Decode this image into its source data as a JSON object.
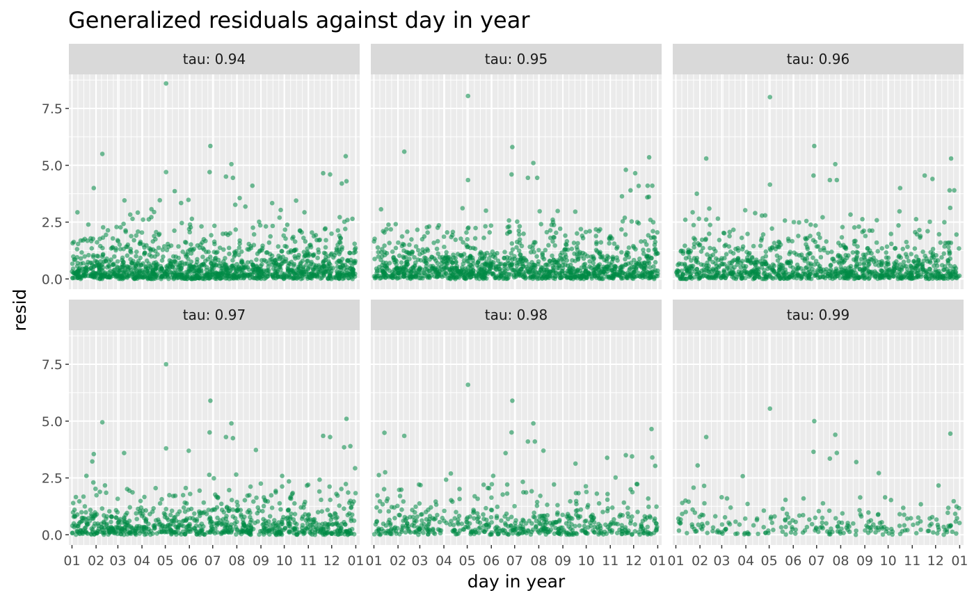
{
  "chart_data": {
    "type": "scatter",
    "title": "Generalized residuals against day in year",
    "xlabel": "day in year",
    "ylabel": "resid",
    "facet_layout": "2 rows x 3 columns",
    "x_tick_labels": [
      "01",
      "02",
      "03",
      "04",
      "05",
      "06",
      "07",
      "08",
      "09",
      "10",
      "11",
      "12",
      "01"
    ],
    "x_range_days": [
      -4,
      370
    ],
    "y_ticks": [
      0.0,
      2.5,
      5.0,
      7.5
    ],
    "y_tick_labels": [
      "0.0",
      "2.5",
      "5.0",
      "7.5"
    ],
    "ylim": [
      -0.45,
      9.0
    ],
    "grid": true,
    "legend": "none",
    "colors": {
      "point": "#008B45",
      "panel_background": "#EBEBEB",
      "strip_background": "#D9D9D9",
      "grid": "#FFFFFF"
    },
    "panels": [
      {
        "strip": "tau: 0.94",
        "approx_point_count": 1300,
        "notable_points": [
          {
            "day": 39,
            "resid": 5.5
          },
          {
            "day": 121,
            "resid": 8.6
          },
          {
            "day": 121,
            "resid": 4.7
          },
          {
            "day": 178,
            "resid": 5.85
          },
          {
            "day": 177,
            "resid": 4.7
          },
          {
            "day": 205,
            "resid": 5.05
          },
          {
            "day": 198,
            "resid": 4.5
          },
          {
            "day": 207,
            "resid": 4.45
          },
          {
            "day": 232,
            "resid": 4.1
          },
          {
            "day": 323,
            "resid": 4.65
          },
          {
            "day": 332,
            "resid": 4.6
          },
          {
            "day": 352,
            "resid": 5.4
          },
          {
            "day": 353,
            "resid": 4.3
          },
          {
            "day": 347,
            "resid": 4.2
          },
          {
            "day": 28,
            "resid": 4.0
          }
        ]
      },
      {
        "strip": "tau: 0.95",
        "approx_point_count": 1200,
        "notable_points": [
          {
            "day": 39,
            "resid": 5.6
          },
          {
            "day": 121,
            "resid": 8.05
          },
          {
            "day": 121,
            "resid": 4.35
          },
          {
            "day": 178,
            "resid": 5.8
          },
          {
            "day": 177,
            "resid": 4.6
          },
          {
            "day": 205,
            "resid": 5.1
          },
          {
            "day": 198,
            "resid": 4.45
          },
          {
            "day": 210,
            "resid": 4.45
          },
          {
            "day": 324,
            "resid": 4.8
          },
          {
            "day": 336,
            "resid": 4.65
          },
          {
            "day": 354,
            "resid": 5.35
          },
          {
            "day": 352,
            "resid": 4.1
          },
          {
            "day": 358,
            "resid": 4.1
          },
          {
            "day": 330,
            "resid": 3.9
          }
        ]
      },
      {
        "strip": "tau: 0.96",
        "approx_point_count": 1000,
        "notable_points": [
          {
            "day": 39,
            "resid": 5.3
          },
          {
            "day": 121,
            "resid": 8.0
          },
          {
            "day": 121,
            "resid": 4.15
          },
          {
            "day": 178,
            "resid": 5.85
          },
          {
            "day": 177,
            "resid": 4.55
          },
          {
            "day": 205,
            "resid": 5.05
          },
          {
            "day": 198,
            "resid": 4.35
          },
          {
            "day": 207,
            "resid": 4.35
          },
          {
            "day": 320,
            "resid": 4.55
          },
          {
            "day": 330,
            "resid": 4.4
          },
          {
            "day": 354,
            "resid": 5.3
          },
          {
            "day": 352,
            "resid": 3.9
          },
          {
            "day": 358,
            "resid": 3.9
          },
          {
            "day": 27,
            "resid": 3.75
          }
        ]
      },
      {
        "strip": "tau: 0.97",
        "approx_point_count": 800,
        "notable_points": [
          {
            "day": 39,
            "resid": 4.95
          },
          {
            "day": 121,
            "resid": 7.5
          },
          {
            "day": 121,
            "resid": 3.8
          },
          {
            "day": 178,
            "resid": 5.9
          },
          {
            "day": 177,
            "resid": 4.5
          },
          {
            "day": 205,
            "resid": 4.9
          },
          {
            "day": 198,
            "resid": 4.3
          },
          {
            "day": 207,
            "resid": 4.25
          },
          {
            "day": 323,
            "resid": 4.35
          },
          {
            "day": 332,
            "resid": 4.3
          },
          {
            "day": 353,
            "resid": 5.1
          },
          {
            "day": 350,
            "resid": 3.85
          },
          {
            "day": 358,
            "resid": 3.9
          },
          {
            "day": 28,
            "resid": 3.55
          }
        ]
      },
      {
        "strip": "tau: 0.98",
        "approx_point_count": 550,
        "notable_points": [
          {
            "day": 39,
            "resid": 4.35
          },
          {
            "day": 121,
            "resid": 6.6
          },
          {
            "day": 178,
            "resid": 5.9
          },
          {
            "day": 177,
            "resid": 4.5
          },
          {
            "day": 205,
            "resid": 4.9
          },
          {
            "day": 198,
            "resid": 4.1
          },
          {
            "day": 207,
            "resid": 4.1
          },
          {
            "day": 357,
            "resid": 4.65
          },
          {
            "day": 218,
            "resid": 3.7
          },
          {
            "day": 324,
            "resid": 3.5
          },
          {
            "day": 332,
            "resid": 3.45
          },
          {
            "day": 358,
            "resid": 3.4
          }
        ]
      },
      {
        "strip": "tau: 0.99",
        "approx_point_count": 230,
        "notable_points": [
          {
            "day": 39,
            "resid": 4.3
          },
          {
            "day": 121,
            "resid": 5.55
          },
          {
            "day": 178,
            "resid": 5.0
          },
          {
            "day": 177,
            "resid": 3.65
          },
          {
            "day": 205,
            "resid": 4.4
          },
          {
            "day": 198,
            "resid": 3.35
          },
          {
            "day": 207,
            "resid": 3.6
          },
          {
            "day": 353,
            "resid": 4.45
          },
          {
            "day": 232,
            "resid": 3.2
          },
          {
            "day": 28,
            "resid": 3.05
          }
        ]
      }
    ]
  }
}
